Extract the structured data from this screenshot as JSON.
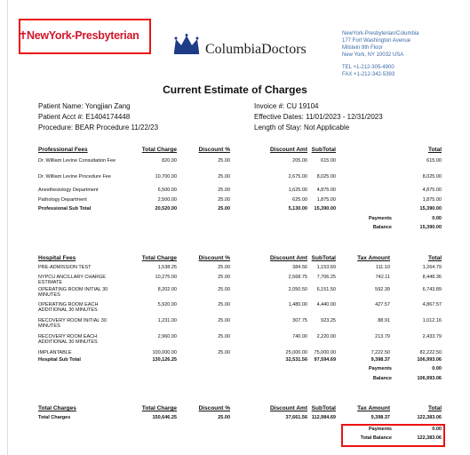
{
  "header": {
    "nyp_logo": "NewYork-Presbyterian",
    "cd_logo": "ColumbiaDoctors",
    "address": [
      "NewYork-Presbyterian/Columbia",
      "177 Fort Washington Avenue",
      "Milstein 9th Floor",
      "New York, NY 10032 USA"
    ],
    "tel": "TEL +1-212-305-4900",
    "fax": "FAX +1-212-342-5393"
  },
  "title": "Current Estimate of Charges",
  "patient": {
    "name": "Patient Name: Yongjian Zang",
    "acct": "Patient Acct #: E1404174448",
    "procedure": "Procedure: BEAR Procedure 11/22/23",
    "invoice": "Invoice #: CU 19104",
    "dates": "Effective Dates: 11/01/2023 - 12/31/2023",
    "stay": "Length of Stay: Not Applicable"
  },
  "professional": {
    "headers": [
      "Professional Fees",
      "Total Charge",
      "Discount %",
      "Discount Amt",
      "SubTotal",
      "Total"
    ],
    "rows": [
      {
        "name": "Dr. William Levine Consultation Fee",
        "charge": "820.00",
        "pct": "25.00",
        "amt": "205.00",
        "sub": "615.00",
        "total": "615.00"
      },
      {
        "name": "Dr. William Levine Procedure Fee",
        "charge": "10,700.00",
        "pct": "25.00",
        "amt": "2,675.00",
        "sub": "8,025.00",
        "total": "8,025.00"
      },
      {
        "name": "Anesthesiology Department",
        "charge": "6,500.00",
        "pct": "25.00",
        "amt": "1,625.00",
        "sub": "4,875.00",
        "total": "4,875.00"
      },
      {
        "name": "Pathology Department",
        "charge": "2,500.00",
        "pct": "25.00",
        "amt": "625.00",
        "sub": "1,875.00",
        "total": "1,875.00"
      }
    ],
    "subtotal": {
      "name": "Professional Sub Total",
      "charge": "20,520.00",
      "pct": "25.00",
      "amt": "5,130.00",
      "sub": "15,390.00",
      "total": "15,390.00"
    },
    "payments_label": "Payments",
    "payments": "0.00",
    "balance_label": "Balance",
    "balance": "15,390.00"
  },
  "hospital": {
    "headers": [
      "Hospital Fees",
      "Total Charge",
      "Discount %",
      "Discount Amt",
      "SubTotal",
      "Tax Amount",
      "Total"
    ],
    "rows": [
      {
        "name": "PRE-ADMISSION TEST",
        "charge": "1,538.25",
        "pct": "25.00",
        "amt": "384.56",
        "sub": "1,153.69",
        "tax": "111.10",
        "total": "1,264.79"
      },
      {
        "name": "NYPCU ANCILLARY CHARGE ESTIMATE",
        "charge": "10,275.00",
        "pct": "25.00",
        "amt": "2,568.75",
        "sub": "7,706.25",
        "tax": "742.11",
        "total": "8,448.36"
      },
      {
        "name": "OPERATING ROOM INITIAL 30 MINUTES",
        "charge": "8,202.00",
        "pct": "25.00",
        "amt": "2,050.50",
        "sub": "6,151.50",
        "tax": "592.39",
        "total": "6,743.89"
      },
      {
        "name": "OPERATING ROOM EACH ADDITIONAL 30 MINUTES",
        "charge": "5,920.00",
        "pct": "25.00",
        "amt": "1,480.00",
        "sub": "4,440.00",
        "tax": "427.57",
        "total": "4,867.57"
      },
      {
        "name": "RECOVERY ROOM INITIAL 30 MINUTES",
        "charge": "1,231.00",
        "pct": "25.00",
        "amt": "307.75",
        "sub": "923.25",
        "tax": "88.91",
        "total": "1,012.16"
      },
      {
        "name": "RECOVERY ROOM EACH ADDITIONAL 30 MINUTES",
        "charge": "2,960.00",
        "pct": "25.00",
        "amt": "740.00",
        "sub": "2,220.00",
        "tax": "213.79",
        "total": "2,433.79"
      },
      {
        "name": "IMPLANTABLE",
        "charge": "100,000.00",
        "pct": "25.00",
        "amt": "25,000.00",
        "sub": "75,000.00",
        "tax": "7,222.50",
        "total": "82,222.50"
      }
    ],
    "subtotal": {
      "name": "Hospital Sub Total",
      "charge": "130,126.25",
      "amt": "32,531.56",
      "sub": "97,594.69",
      "tax": "9,398.37",
      "total": "106,993.06"
    },
    "payments_label": "Payments",
    "payments": "0.00",
    "balance_label": "Balance",
    "balance": "106,993.06"
  },
  "totals": {
    "headers": [
      "Total Charges",
      "Total Charge",
      "Discount %",
      "Discount Amt",
      "SubTotal",
      "Tax Amount",
      "Total"
    ],
    "row": {
      "name": "Total Charges",
      "charge": "150,646.25",
      "pct": "25.00",
      "amt": "37,661.56",
      "sub": "112,984.69",
      "tax": "9,398.37",
      "total": "122,383.06"
    },
    "payments_label": "Payments",
    "payments": "0.00",
    "balance_label": "Total Balance",
    "balance": "122,383.06"
  }
}
